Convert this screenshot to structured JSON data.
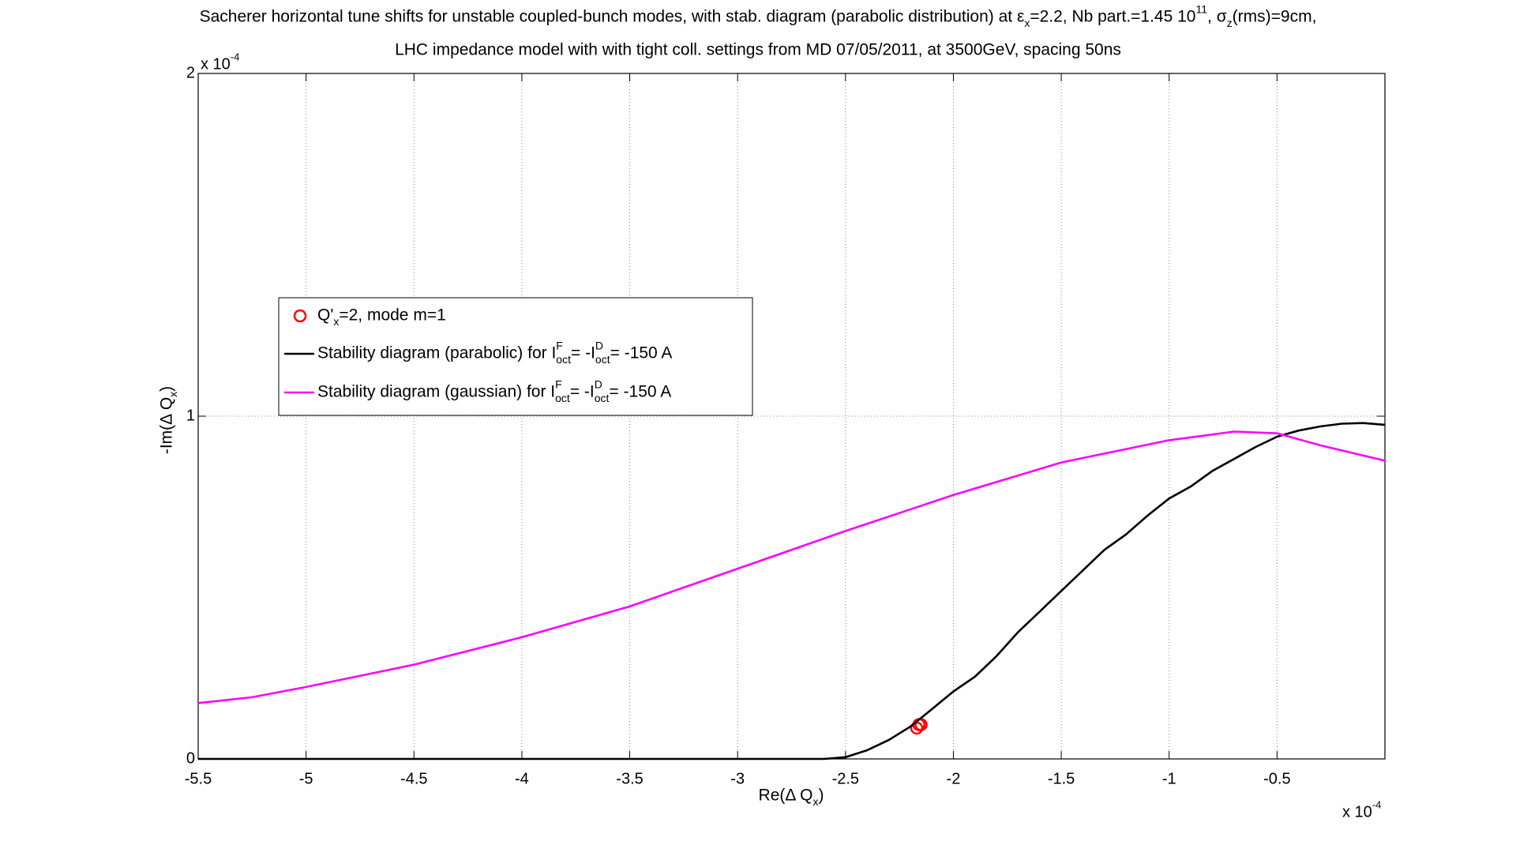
{
  "chart_data": {
    "type": "line",
    "title_line1": [
      "Sacherer horizontal tune shifts for unstable coupled-bunch modes, with stab. diagram (parabolic distribution) at ε",
      "x",
      "=2.2, Nb part.=1.45 10",
      "11",
      ", σ",
      "z",
      " (rms)=9cm,"
    ],
    "title_line2": "LHC impedance model with with tight coll. settings from MD 07/05/2011, at 3500GeV, spacing 50ns",
    "xlabel": [
      "Re(Δ Q",
      "x",
      ")"
    ],
    "ylabel": [
      "-Im(Δ Q",
      "x",
      ")"
    ],
    "x_exponent": [
      "x 10",
      "-4"
    ],
    "y_exponent": [
      "x 10",
      "-4"
    ],
    "xlim": [
      -5.5,
      0
    ],
    "ylim": [
      0,
      2
    ],
    "xticks": [
      -5.5,
      -5,
      -4.5,
      -4,
      -3.5,
      -3,
      -2.5,
      -2,
      -1.5,
      -1,
      -0.5
    ],
    "yticks": [
      0,
      1,
      2
    ],
    "grid": true,
    "legend": "upper left",
    "series": [
      {
        "name": [
          "Q'",
          "x",
          "=2, mode m=1"
        ],
        "type": "scatter",
        "color": "#ff0000",
        "x": [
          -2.17,
          -2.16,
          -2.15
        ],
        "values": [
          0.09,
          0.1,
          0.1
        ]
      },
      {
        "name": [
          "Stability diagram (parabolic) for I",
          "F",
          "oct",
          " = -I",
          "D",
          "oct",
          " = -150 A"
        ],
        "type": "line",
        "color": "#000000",
        "x": [
          -5.5,
          -2.6,
          -2.5,
          -2.4,
          -2.3,
          -2.2,
          -2.1,
          -2.0,
          -1.9,
          -1.8,
          -1.7,
          -1.6,
          -1.5,
          -1.4,
          -1.3,
          -1.2,
          -1.1,
          -1.0,
          -0.9,
          -0.8,
          -0.7,
          -0.6,
          -0.5,
          -0.4,
          -0.3,
          -0.2,
          -0.1,
          0
        ],
        "values": [
          0,
          0,
          0.005,
          0.025,
          0.055,
          0.094,
          0.145,
          0.197,
          0.24,
          0.3,
          0.37,
          0.43,
          0.49,
          0.55,
          0.61,
          0.655,
          0.71,
          0.76,
          0.795,
          0.84,
          0.875,
          0.91,
          0.94,
          0.958,
          0.97,
          0.978,
          0.98,
          0.975
        ]
      },
      {
        "name": [
          "Stability diagram (gaussian) for I",
          "F",
          "oct",
          " = -I",
          "D",
          "oct",
          " = -150 A"
        ],
        "type": "line",
        "color": "#ff00ff",
        "x": [
          -5.5,
          -5.25,
          -5,
          -4.5,
          -4,
          -3.5,
          -3,
          -2.5,
          -2,
          -1.5,
          -1,
          -0.7,
          -0.5,
          -0.3,
          0
        ],
        "values": [
          0.163,
          0.18,
          0.21,
          0.275,
          0.355,
          0.445,
          0.555,
          0.665,
          0.77,
          0.865,
          0.93,
          0.955,
          0.95,
          0.915,
          0.87
        ]
      }
    ]
  }
}
